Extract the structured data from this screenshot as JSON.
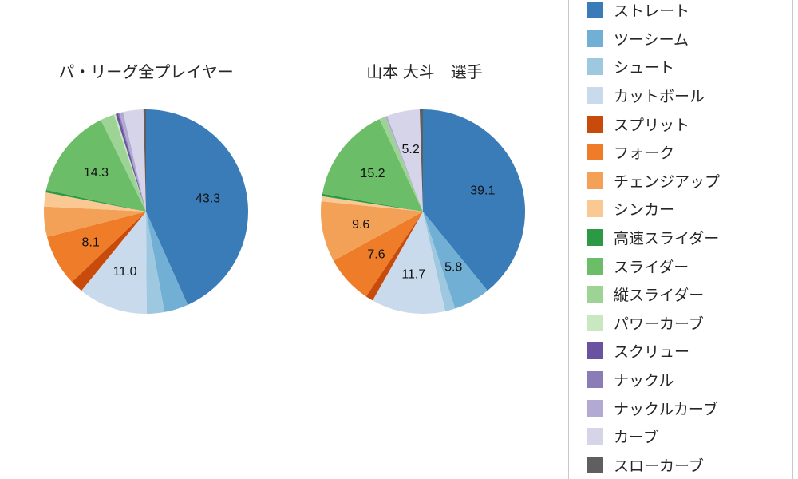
{
  "page": {
    "background": "#ffffff",
    "text_color": "#262626"
  },
  "chart_data": [
    {
      "type": "pie",
      "title": "パ・リーグ全プレイヤー",
      "unit": "%",
      "start_angle_deg": 0,
      "direction": "clockwise",
      "label_min_value": 5,
      "radius": 128,
      "categories": [
        "ストレート",
        "ツーシーム",
        "シュート",
        "カットボール",
        "スプリット",
        "フォーク",
        "チェンジアップ",
        "シンカー",
        "高速スライダー",
        "スライダー",
        "縦スライダー",
        "パワーカーブ",
        "スクリュー",
        "ナックル",
        "ナックルカーブ",
        "カーブ",
        "スローカーブ"
      ],
      "values": [
        43.3,
        3.8,
        2.8,
        11.0,
        2.0,
        8.1,
        4.8,
        2.2,
        0.4,
        14.3,
        2.2,
        0.3,
        0.4,
        0.2,
        0.6,
        3.2,
        0.4
      ],
      "shown_labels": [
        "43.3",
        "11.0",
        "8.1",
        "14.3"
      ],
      "colors": [
        "#3a7cb8",
        "#72afd5",
        "#9ec7e0",
        "#c8daeb",
        "#c84b0b",
        "#ee7c28",
        "#f4a158",
        "#f9c893",
        "#2c9a45",
        "#6cbd68",
        "#9dd395",
        "#c9e8c2",
        "#6a52a0",
        "#8b7cb8",
        "#b2aad2",
        "#d6d4e8",
        "#5f5f5f"
      ]
    },
    {
      "type": "pie",
      "title": "山本 大斗　選手",
      "unit": "%",
      "start_angle_deg": 0,
      "direction": "clockwise",
      "label_min_value": 5,
      "radius": 128,
      "categories": [
        "ストレート",
        "ツーシーム",
        "シュート",
        "カットボール",
        "スプリット",
        "フォーク",
        "チェンジアップ",
        "シンカー",
        "高速スライダー",
        "スライダー",
        "縦スライダー",
        "パワーカーブ",
        "スクリュー",
        "ナックル",
        "ナックルカーブ",
        "カーブ",
        "スローカーブ"
      ],
      "values": [
        39.1,
        5.8,
        1.6,
        11.7,
        1.2,
        7.6,
        9.6,
        0.8,
        0.4,
        15.2,
        1.0,
        0.0,
        0.0,
        0.0,
        0.3,
        5.2,
        0.5
      ],
      "shown_labels": [
        "39.1",
        "5.8",
        "11.7",
        "7.6",
        "9.6",
        "15.2",
        "5.2"
      ],
      "colors": [
        "#3a7cb8",
        "#72afd5",
        "#9ec7e0",
        "#c8daeb",
        "#c84b0b",
        "#ee7c28",
        "#f4a158",
        "#f9c893",
        "#2c9a45",
        "#6cbd68",
        "#9dd395",
        "#c9e8c2",
        "#6a52a0",
        "#8b7cb8",
        "#b2aad2",
        "#d6d4e8",
        "#5f5f5f"
      ]
    }
  ],
  "legend": {
    "position": "right",
    "items": [
      {
        "label": "ストレート",
        "color": "#3a7cb8"
      },
      {
        "label": "ツーシーム",
        "color": "#72afd5"
      },
      {
        "label": "シュート",
        "color": "#9ec7e0"
      },
      {
        "label": "カットボール",
        "color": "#c8daeb"
      },
      {
        "label": "スプリット",
        "color": "#c84b0b"
      },
      {
        "label": "フォーク",
        "color": "#ee7c28"
      },
      {
        "label": "チェンジアップ",
        "color": "#f4a158"
      },
      {
        "label": "シンカー",
        "color": "#f9c893"
      },
      {
        "label": "高速スライダー",
        "color": "#2c9a45"
      },
      {
        "label": "スライダー",
        "color": "#6cbd68"
      },
      {
        "label": "縦スライダー",
        "color": "#9dd395"
      },
      {
        "label": "パワーカーブ",
        "color": "#c9e8c2"
      },
      {
        "label": "スクリュー",
        "color": "#6a52a0"
      },
      {
        "label": "ナックル",
        "color": "#8b7cb8"
      },
      {
        "label": "ナックルカーブ",
        "color": "#b2aad2"
      },
      {
        "label": "カーブ",
        "color": "#d6d4e8"
      },
      {
        "label": "スローカーブ",
        "color": "#5f5f5f"
      }
    ]
  }
}
